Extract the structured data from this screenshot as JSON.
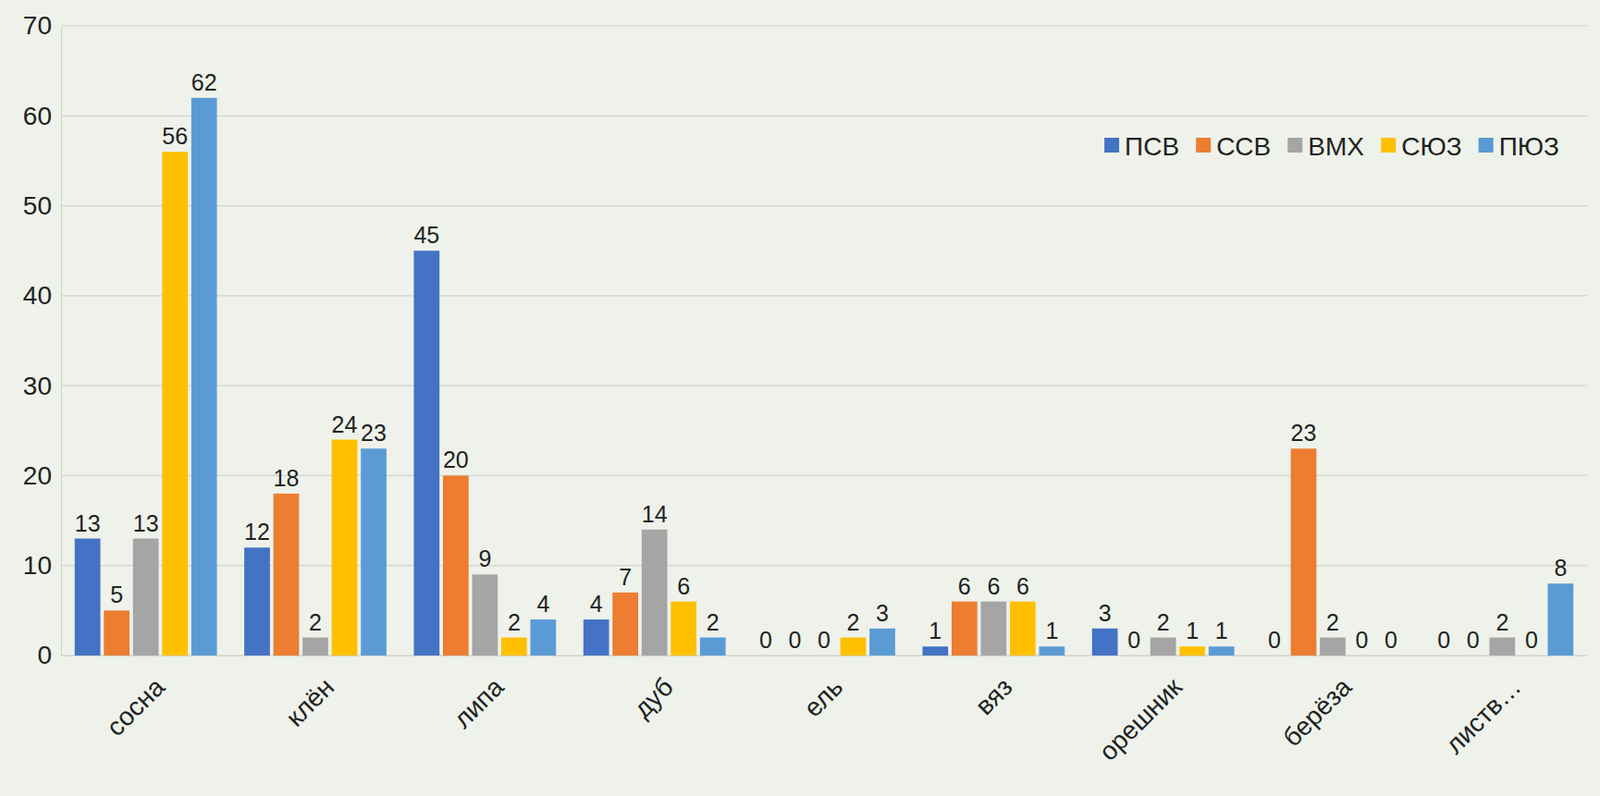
{
  "chart_data": {
    "type": "bar",
    "categories": [
      "сосна",
      "клён",
      "липа",
      "дуб",
      "ель",
      "вяз",
      "орешник",
      "берёза",
      "листв…"
    ],
    "series": [
      {
        "name": "ПСВ",
        "color": "#4472c4",
        "values": [
          13,
          12,
          45,
          4,
          0,
          1,
          3,
          0,
          0
        ]
      },
      {
        "name": "ССВ",
        "color": "#ed7d31",
        "values": [
          5,
          18,
          20,
          7,
          0,
          6,
          0,
          23,
          0
        ]
      },
      {
        "name": "ВМХ",
        "color": "#a5a5a5",
        "values": [
          13,
          2,
          9,
          14,
          0,
          6,
          2,
          2,
          2
        ]
      },
      {
        "name": "СЮЗ",
        "color": "#ffc000",
        "values": [
          56,
          24,
          2,
          6,
          2,
          6,
          1,
          0,
          0
        ]
      },
      {
        "name": "ПЮЗ",
        "color": "#5b9bd5",
        "values": [
          62,
          23,
          4,
          2,
          3,
          1,
          1,
          0,
          8
        ]
      }
    ],
    "ylim": [
      0,
      70
    ],
    "yticks": [
      0,
      10,
      20,
      30,
      40,
      50,
      60,
      70
    ],
    "grid": true,
    "legend": "top-right",
    "data_labels": true
  }
}
